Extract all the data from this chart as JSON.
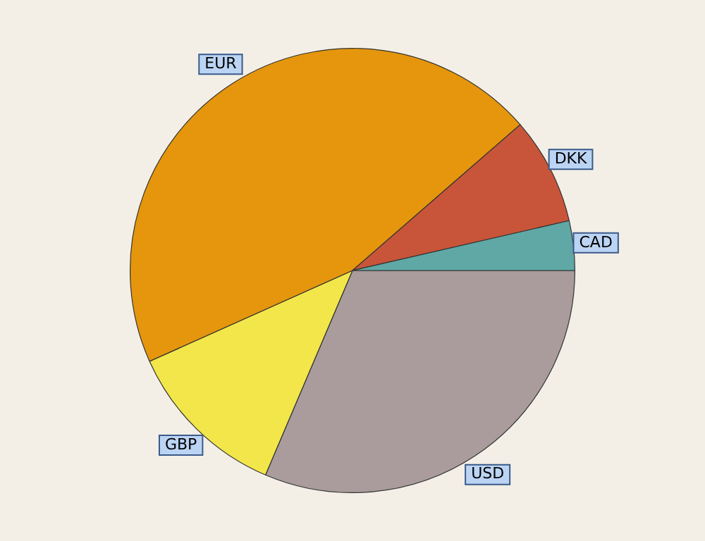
{
  "chart_data": {
    "type": "pie",
    "categories": [
      "USD",
      "GBP",
      "EUR",
      "DKK",
      "CAD"
    ],
    "values": [
      31.4,
      11.9,
      45.3,
      7.8,
      3.6
    ],
    "colors": [
      "#aa9c9c",
      "#f2e64a",
      "#e5960c",
      "#c8553a",
      "#5fa8a5"
    ],
    "legend": false
  }
}
